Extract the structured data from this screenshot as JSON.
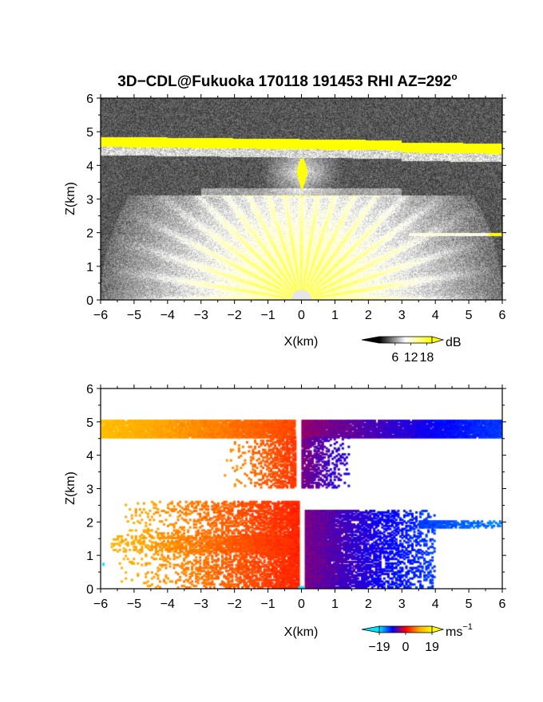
{
  "title": {
    "main": "3D−CDL@Fukuoka 170118 191453 RHI AZ=292",
    "superscript": "o"
  },
  "chart_data": [
    {
      "type": "heatmap",
      "name": "signal-intensity-panel",
      "xlabel": "X(km)",
      "ylabel": "Z(km)",
      "xlim": [
        -6,
        6
      ],
      "ylim": [
        0,
        6
      ],
      "xticks": [
        "−6",
        "−5",
        "−4",
        "−3",
        "−2",
        "−1",
        "0",
        "1",
        "2",
        "3",
        "4",
        "5",
        "6"
      ],
      "yticks": [
        "0",
        "1",
        "2",
        "3",
        "4",
        "5",
        "6"
      ],
      "colorbar": {
        "unit": "dB",
        "ticks": [
          "6",
          "12",
          "18"
        ],
        "range": [
          0,
          20
        ],
        "colors": [
          "#000000",
          "#ffffff",
          "#ffff00"
        ]
      },
      "features": {
        "cloud_layer_top_km": 4.75,
        "cloud_layer_thickness_km": 0.3,
        "central_echo": {
          "x": 0.0,
          "z_bottom": 3.3,
          "z_top": 4.2
        },
        "layer_2km": {
          "x_start": 3.2,
          "x_end": 6.0,
          "z": 1.95
        },
        "grey_layer_3km": {
          "x_start": -3.0,
          "x_end": 3.0,
          "z": 3.2
        },
        "beam_fan_origin": {
          "x": 0.0,
          "z": 0.0
        },
        "beam_fan_max_range_km": 6.0
      }
    },
    {
      "type": "heatmap",
      "name": "doppler-velocity-panel",
      "xlabel": "X(km)",
      "ylabel": "Z(km)",
      "xlim": [
        -6,
        6
      ],
      "ylim": [
        0,
        6
      ],
      "xticks": [
        "−6",
        "−5",
        "−4",
        "−3",
        "−2",
        "−1",
        "0",
        "1",
        "2",
        "3",
        "4",
        "5",
        "6"
      ],
      "yticks": [
        "0",
        "1",
        "2",
        "3",
        "4",
        "5",
        "6"
      ],
      "colorbar": {
        "unit": "ms",
        "unit_superscript": "−1",
        "ticks": [
          "−19",
          "0",
          "19"
        ],
        "range": [
          -19,
          19
        ],
        "colors": [
          "#00e5ff",
          "#0000ff",
          "#ff0000",
          "#ffa500",
          "#ffff00"
        ]
      },
      "regions": [
        {
          "x0": -6.0,
          "x1": -0.2,
          "z0": 4.5,
          "z1": 5.0,
          "v_left": 12,
          "v_right": 4
        },
        {
          "x0": 0.0,
          "x1": 6.0,
          "z0": 4.5,
          "z1": 5.0,
          "v_left": -4,
          "v_right": -12
        },
        {
          "x0": -2.5,
          "x1": -0.2,
          "z0": 3.0,
          "z1": 4.5,
          "v_left": 9,
          "v_right": 3
        },
        {
          "x0": 0.0,
          "x1": 1.5,
          "z0": 3.0,
          "z1": 4.5,
          "v_left": -5,
          "v_right": -9
        },
        {
          "x0": -5.7,
          "x1": -0.1,
          "z0": 0.0,
          "z1": 2.6,
          "v_left": 11,
          "v_right": 2
        },
        {
          "x0": 0.1,
          "x1": 4.0,
          "z0": 0.0,
          "z1": 2.3,
          "v_left": -5,
          "v_right": -12
        },
        {
          "x0": 3.5,
          "x1": 6.0,
          "z0": 1.8,
          "z1": 2.0,
          "v_left": -12,
          "v_right": -15
        }
      ]
    }
  ]
}
